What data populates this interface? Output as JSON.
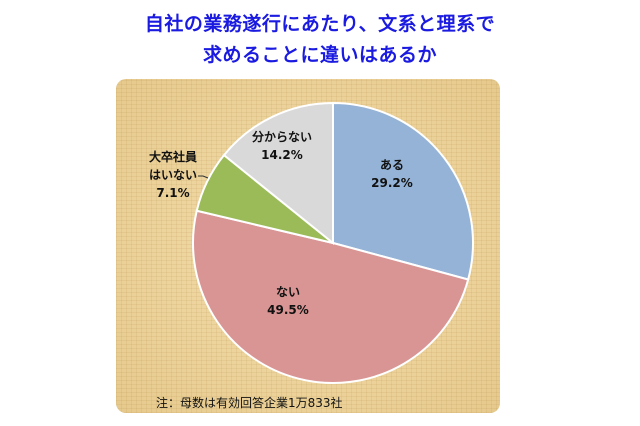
{
  "title": {
    "line1": "自社の業務遂行にあたり、文系と理系で",
    "line2": "求めることに違いはあるか"
  },
  "note": "注：母数は有効回答企業1万833社",
  "slices": [
    {
      "name": "ある",
      "value": "29.2%",
      "color": "#95b3d7"
    },
    {
      "name": "ない",
      "value": "49.5%",
      "color": "#d99594"
    },
    {
      "name": "大卒社員はいない",
      "name_line1": "大卒社員",
      "name_line2": "はいない",
      "value": "7.1%",
      "color": "#9bbb59"
    },
    {
      "name": "分からない",
      "value": "14.2%",
      "color": "#d9d9d9"
    }
  ],
  "chart_data": {
    "type": "pie",
    "title": "自社の業務遂行にあたり、文系と理系で求めることに違いはあるか",
    "categories": [
      "ある",
      "ない",
      "大卒社員はいない",
      "分からない"
    ],
    "values": [
      29.2,
      49.5,
      7.1,
      14.2
    ],
    "unit": "%",
    "colors": [
      "#95b3d7",
      "#d99594",
      "#9bbb59",
      "#d9d9d9"
    ],
    "start_angle": "12 o'clock, clockwise",
    "annotations": [
      "注：母数は有効回答企業1万833社"
    ]
  }
}
